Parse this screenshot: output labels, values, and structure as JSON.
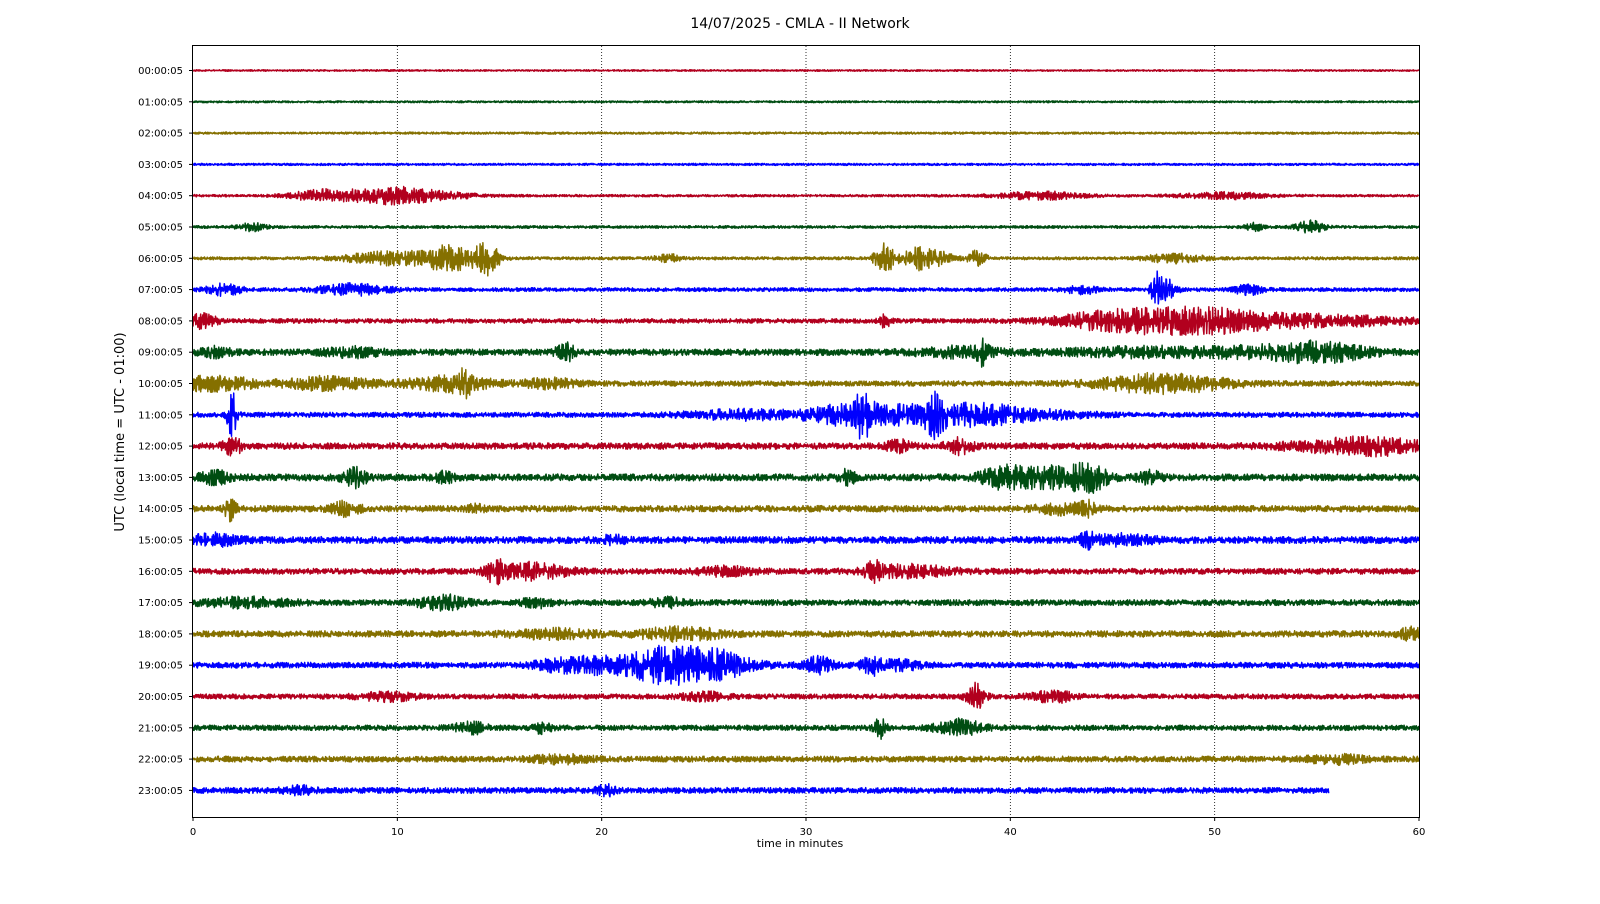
{
  "chart_data": {
    "type": "line",
    "title": "14/07/2025 - CMLA - II Network",
    "xlabel": "time in minutes",
    "ylabel": "UTC (local time = UTC - 01:00)",
    "xlim": [
      0,
      60
    ],
    "x_ticks": [
      "0",
      "10",
      "20",
      "30",
      "40",
      "50",
      "60"
    ],
    "grid": "vertical dotted lines at x ticks",
    "colors": [
      "#b2001e",
      "#004d12",
      "#857000",
      "#0000ff"
    ],
    "row_labels": [
      "00:00:05",
      "01:00:05",
      "02:00:05",
      "03:00:05",
      "04:00:05",
      "05:00:05",
      "06:00:05",
      "07:00:05",
      "08:00:05",
      "09:00:05",
      "10:00:05",
      "11:00:05",
      "12:00:05",
      "13:00:05",
      "14:00:05",
      "15:00:05",
      "16:00:05",
      "17:00:05",
      "18:00:05",
      "19:00:05",
      "20:00:05",
      "21:00:05",
      "22:00:05",
      "23:00:05"
    ],
    "series": [
      {
        "label": "00:00:05",
        "noise": 0.3,
        "events": []
      },
      {
        "label": "01:00:05",
        "noise": 0.35,
        "events": []
      },
      {
        "label": "02:00:05",
        "noise": 0.4,
        "events": []
      },
      {
        "label": "03:00:05",
        "noise": 0.4,
        "events": []
      },
      {
        "label": "04:00:05",
        "noise": 0.45,
        "events": [
          [
            6.5,
            1.2,
            2.2
          ],
          [
            9.5,
            1.2,
            2.4
          ],
          [
            11.5,
            1.5,
            1.6
          ],
          [
            41.5,
            1.5,
            1.4
          ],
          [
            50.5,
            1.5,
            1.2
          ]
        ]
      },
      {
        "label": "05:00:05",
        "noise": 0.5,
        "events": [
          [
            2.9,
            0.5,
            1.4
          ],
          [
            51.9,
            0.3,
            1.6
          ],
          [
            54.7,
            0.5,
            2.2
          ]
        ]
      },
      {
        "label": "06:00:05",
        "noise": 0.55,
        "events": [
          [
            9.5,
            1.5,
            2.4
          ],
          [
            12.6,
            1.0,
            4.5
          ],
          [
            14.4,
            0.4,
            5.5
          ],
          [
            23.2,
            0.4,
            1.8
          ],
          [
            33.8,
            0.3,
            7
          ],
          [
            35.8,
            0.8,
            4.5
          ],
          [
            38.4,
            0.3,
            3
          ],
          [
            48,
            1,
            1.6
          ]
        ]
      },
      {
        "label": "07:00:05",
        "noise": 0.7,
        "events": [
          [
            1.5,
            0.6,
            2
          ],
          [
            7.8,
            1.2,
            2
          ],
          [
            43.5,
            0.6,
            1.4
          ],
          [
            47.1,
            0.2,
            6
          ],
          [
            47.7,
            0.3,
            3.5
          ],
          [
            51.6,
            0.5,
            1.8
          ]
        ]
      },
      {
        "label": "08:00:05",
        "noise": 0.85,
        "events": [
          [
            0.4,
            0.5,
            2.5
          ],
          [
            33.9,
            0.2,
            2.5
          ],
          [
            44.5,
            2,
            2
          ],
          [
            47.5,
            2.5,
            3
          ],
          [
            50,
            2,
            2.2
          ],
          [
            55,
            3,
            2
          ]
        ]
      },
      {
        "label": "09:00:05",
        "noise": 1.2,
        "events": [
          [
            1.1,
            0.5,
            1.5
          ],
          [
            7.8,
            1,
            1.4
          ],
          [
            18.2,
            0.3,
            3.5
          ],
          [
            37.5,
            1.5,
            1.6
          ],
          [
            38.6,
            0.2,
            3.5
          ],
          [
            47,
            3,
            1.5
          ],
          [
            53,
            2,
            1.8
          ],
          [
            55.5,
            1.5,
            2.5
          ]
        ]
      },
      {
        "label": "10:00:05",
        "noise": 1.0,
        "events": [
          [
            1,
            1.5,
            2.5
          ],
          [
            6.5,
            1.5,
            2.2
          ],
          [
            12.5,
            1.5,
            2.5
          ],
          [
            13.3,
            0.3,
            4
          ],
          [
            17.5,
            1,
            1.6
          ],
          [
            46.5,
            2,
            2
          ],
          [
            48.5,
            2,
            1.8
          ]
        ]
      },
      {
        "label": "11:00:05",
        "noise": 0.95,
        "events": [
          [
            1.9,
            0.15,
            9
          ],
          [
            27,
            2,
            1.6
          ],
          [
            32,
            1.3,
            3.5
          ],
          [
            32.8,
            0.3,
            5.5
          ],
          [
            35.5,
            1.5,
            3.5
          ],
          [
            36.3,
            0.3,
            5
          ],
          [
            38.5,
            1.3,
            2.8
          ],
          [
            41,
            2,
            1.5
          ]
        ]
      },
      {
        "label": "12:00:05",
        "noise": 1.2,
        "events": [
          [
            1.9,
            0.3,
            3.5
          ],
          [
            34.5,
            0.4,
            2
          ],
          [
            37.5,
            0.5,
            2.5
          ],
          [
            56,
            2,
            1.8
          ],
          [
            58.5,
            1.5,
            2
          ]
        ]
      },
      {
        "label": "13:00:05",
        "noise": 1.3,
        "events": [
          [
            1.1,
            0.5,
            2.2
          ],
          [
            7.9,
            0.4,
            3.2
          ],
          [
            12.3,
            0.3,
            2
          ],
          [
            32,
            0.3,
            2.5
          ],
          [
            39.6,
            0.8,
            3.2
          ],
          [
            41.8,
            1.2,
            3.5
          ],
          [
            43.8,
            0.6,
            5
          ],
          [
            46.8,
            0.4,
            2
          ]
        ]
      },
      {
        "label": "14:00:05",
        "noise": 1.2,
        "events": [
          [
            1.8,
            0.2,
            4
          ],
          [
            7.4,
            0.5,
            2.2
          ],
          [
            13.8,
            0.3,
            1.5
          ],
          [
            42.5,
            0.8,
            1.8
          ],
          [
            43.8,
            0.3,
            2
          ]
        ]
      },
      {
        "label": "15:00:05",
        "noise": 1.3,
        "events": [
          [
            1,
            0.8,
            1.8
          ],
          [
            20.5,
            0.4,
            1.4
          ],
          [
            43.8,
            0.3,
            2.2
          ],
          [
            45.5,
            1,
            1.6
          ]
        ]
      },
      {
        "label": "16:00:05",
        "noise": 1.1,
        "events": [
          [
            14.8,
            0.3,
            4
          ],
          [
            16.6,
            1.2,
            2.8
          ],
          [
            26,
            1,
            1.4
          ],
          [
            33.3,
            0.3,
            3
          ],
          [
            35,
            1.5,
            2
          ]
        ]
      },
      {
        "label": "17:00:05",
        "noise": 1.1,
        "events": [
          [
            2.5,
            1.5,
            1.5
          ],
          [
            12.2,
            0.8,
            2.5
          ],
          [
            16.8,
            0.5,
            1.6
          ],
          [
            23.2,
            0.6,
            1.4
          ]
        ]
      },
      {
        "label": "18:00:05",
        "noise": 1.2,
        "events": [
          [
            17.5,
            1.5,
            1.4
          ],
          [
            23.8,
            1.5,
            2
          ],
          [
            59.6,
            0.4,
            1.8
          ]
        ]
      },
      {
        "label": "19:00:05",
        "noise": 1.1,
        "events": [
          [
            17.7,
            0.8,
            1.6
          ],
          [
            19.5,
            1,
            2.5
          ],
          [
            22.5,
            1.3,
            3.5
          ],
          [
            24.2,
            1.8,
            4.2
          ],
          [
            25.7,
            1,
            2.5
          ],
          [
            30.6,
            0.5,
            2.8
          ],
          [
            33.3,
            0.4,
            3
          ],
          [
            34.5,
            0.8,
            1.6
          ]
        ]
      },
      {
        "label": "20:00:05",
        "noise": 0.95,
        "events": [
          [
            9.5,
            1,
            1.4
          ],
          [
            25,
            0.8,
            1.4
          ],
          [
            38.3,
            0.3,
            4.5
          ],
          [
            42,
            0.7,
            2.2
          ]
        ]
      },
      {
        "label": "21:00:05",
        "noise": 1.0,
        "events": [
          [
            13.6,
            0.6,
            2
          ],
          [
            17.1,
            0.3,
            1.8
          ],
          [
            33.6,
            0.2,
            3.5
          ],
          [
            37.5,
            0.8,
            2.8
          ]
        ]
      },
      {
        "label": "22:00:05",
        "noise": 1.1,
        "events": [
          [
            18,
            1,
            1.2
          ],
          [
            56,
            1,
            1.4
          ]
        ]
      },
      {
        "label": "23:00:05",
        "noise": 1.1,
        "x_end": 55.6,
        "events": [
          [
            5.2,
            0.5,
            1.4
          ],
          [
            20.2,
            0.3,
            1.8
          ]
        ]
      }
    ]
  }
}
